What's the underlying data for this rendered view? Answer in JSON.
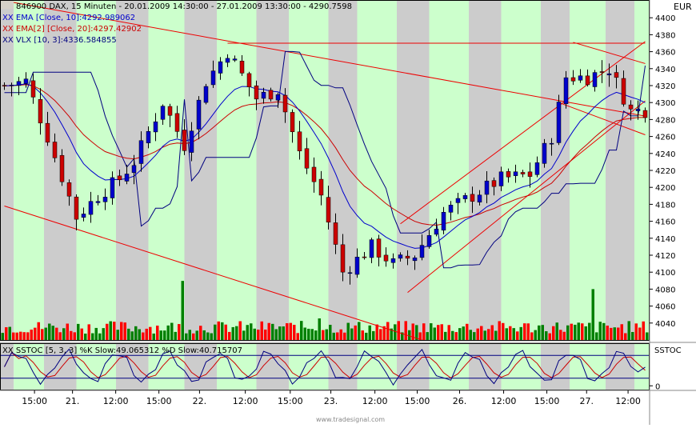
{
  "header": {
    "line1": "846900  DAX, 15 Minuten - 20.01.2009 14:30:00 - 27.01.2009 13:30:00 - 4290.7598",
    "line2": "XX EMA [Close, 10]:4292.989062",
    "line3": "XX EMA[2] [Close, 20]:4297.42902",
    "line4": "XX VLX [10, 3]:4336.584855",
    "currency": "EUR"
  },
  "footer": {
    "stoch_label": "XX SSTOC [5, 3, 3] %K Slow:49.065312 %D Slow:40.715707",
    "stoch_tag": "SSTOC",
    "watermark": "www.tradesignal.com"
  },
  "colors": {
    "candle_up": "#0000cc",
    "candle_down": "#cc0000",
    "ema10": "#0000cc",
    "ema20": "#cc0000",
    "vlx": "#000080",
    "trendline": "#ee0000",
    "band_green": "#ccffcc",
    "band_gray": "#cccccc",
    "vol_up": "#008000",
    "vol_down": "#ff0000"
  },
  "chart_data": [
    {
      "type": "candlestick",
      "title": "846900  DAX, 15 Minuten",
      "ylim": [
        4020,
        4420
      ],
      "yticks": [
        4040,
        4060,
        4080,
        4100,
        4120,
        4140,
        4160,
        4180,
        4200,
        4220,
        4240,
        4260,
        4280,
        4300,
        4320,
        4340,
        4360,
        4380,
        4400
      ],
      "xticks": [
        "15:00",
        "21.",
        "12:00",
        "15:00",
        "22.",
        "12:00",
        "15:00",
        "23.",
        "12:00",
        "15:00",
        "26.",
        "12:00",
        "15:00",
        "27.",
        "12:00"
      ],
      "last_close": 4290.76,
      "legend": [
        "EMA [Close, 10]:4292.989062",
        "EMA[2] [Close, 20]:4297.42902",
        "VLX [10, 3]:4336.584855"
      ],
      "path_anchors": [
        {
          "t": 0,
          "v": 4320
        },
        {
          "t": 3,
          "v": 4325
        },
        {
          "t": 6,
          "v": 4260
        },
        {
          "t": 10,
          "v": 4165
        },
        {
          "t": 13,
          "v": 4190
        },
        {
          "t": 16,
          "v": 4210
        },
        {
          "t": 18,
          "v": 4230
        },
        {
          "t": 22,
          "v": 4300
        },
        {
          "t": 25,
          "v": 4250
        },
        {
          "t": 28,
          "v": 4325
        },
        {
          "t": 31,
          "v": 4360
        },
        {
          "t": 35,
          "v": 4305
        },
        {
          "t": 38,
          "v": 4315
        },
        {
          "t": 41,
          "v": 4240
        },
        {
          "t": 44,
          "v": 4190
        },
        {
          "t": 47,
          "v": 4100
        },
        {
          "t": 51,
          "v": 4130
        },
        {
          "t": 54,
          "v": 4110
        },
        {
          "t": 57,
          "v": 4120
        },
        {
          "t": 61,
          "v": 4170
        },
        {
          "t": 65,
          "v": 4190
        },
        {
          "t": 69,
          "v": 4210
        },
        {
          "t": 73,
          "v": 4215
        },
        {
          "t": 76,
          "v": 4260
        },
        {
          "t": 78,
          "v": 4330
        },
        {
          "t": 81,
          "v": 4330
        },
        {
          "t": 84,
          "v": 4340
        },
        {
          "t": 87,
          "v": 4290
        },
        {
          "t": 89,
          "v": 4291
        }
      ],
      "trendlines": [
        {
          "t1": 0,
          "v1": 4178,
          "t2": 58,
          "v2": 4020
        },
        {
          "t1": 0,
          "v1": 4420,
          "t2": 89,
          "v2": 4284
        },
        {
          "t1": 31,
          "v1": 4370,
          "t2": 89,
          "v2": 4370
        },
        {
          "t1": 55,
          "v1": 4157,
          "t2": 89,
          "v2": 4372
        },
        {
          "t1": 56,
          "v1": 4076,
          "t2": 89,
          "v2": 4302
        },
        {
          "t1": 79,
          "v1": 4371,
          "t2": 89,
          "v2": 4346
        },
        {
          "t1": 77,
          "v1": 4300,
          "t2": 89,
          "v2": 4262
        }
      ]
    },
    {
      "type": "bar",
      "title": "Volume",
      "note": "volume bars per session (green up / red down)",
      "spikes": [
        {
          "t": 25,
          "mult": 4.0
        },
        {
          "t": 44,
          "mult": 2.6
        },
        {
          "t": 82,
          "mult": 3.3
        }
      ]
    },
    {
      "type": "line",
      "title": "XX SSTOC [5, 3, 3]",
      "ylim": [
        -10,
        110
      ],
      "reference_lines": [
        20,
        80
      ],
      "yticks": [
        0
      ],
      "series": [
        {
          "name": "%K Slow",
          "last": 49.065312
        },
        {
          "name": "%D Slow",
          "last": 40.715707
        }
      ]
    }
  ]
}
